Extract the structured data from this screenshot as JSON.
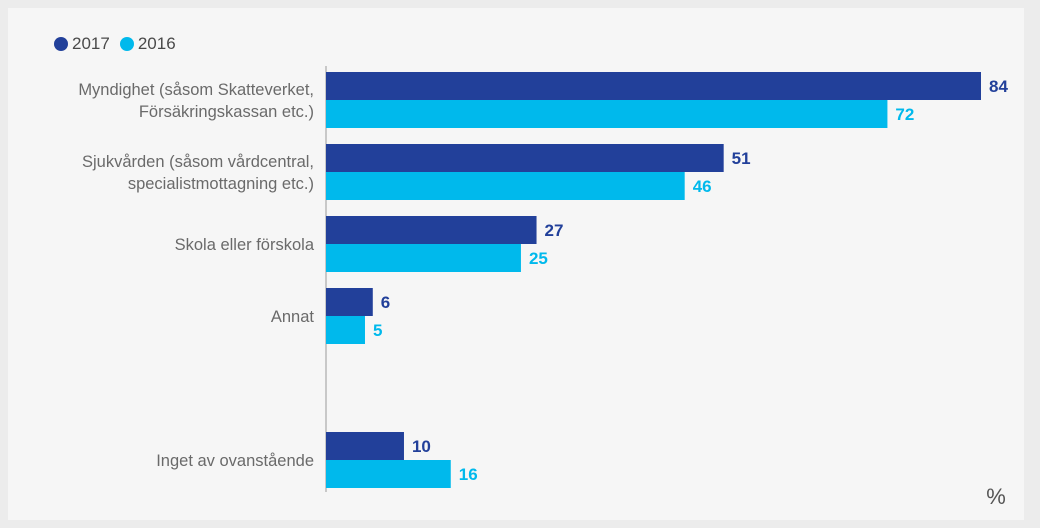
{
  "chart_data": {
    "type": "bar",
    "orientation": "horizontal",
    "unit": "%",
    "categories": [
      [
        "Myndighet (såsom Skatteverket,",
        "Försäkringskassan etc.)"
      ],
      [
        "Sjukvården (såsom vårdcentral,",
        "specialistmottagning etc.)"
      ],
      [
        "Skola eller förskola"
      ],
      [
        "Annat"
      ],
      [
        "Inget av ovanstående"
      ]
    ],
    "series": [
      {
        "name": "2017",
        "color": "#22409a",
        "values": [
          84,
          51,
          27,
          6,
          10
        ]
      },
      {
        "name": "2016",
        "color": "#00b9ec",
        "values": [
          72,
          46,
          25,
          5,
          16
        ]
      }
    ],
    "xlim": [
      0,
      84
    ],
    "grid": false,
    "legend_position": "top-left"
  }
}
